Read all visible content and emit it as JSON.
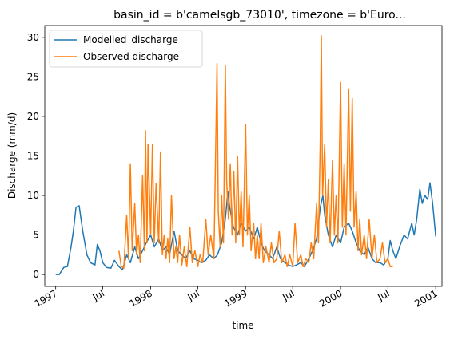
{
  "chart_data": {
    "type": "line",
    "title": "basin_id = b'camelsgb_73010', timezone = b'Euro...",
    "xlabel": "time",
    "ylabel": "Discharge (mm/d)",
    "ylim": [
      -1.5,
      31.5
    ],
    "xlim": [
      "1996-11-20",
      "2001-01-25"
    ],
    "yticks": [
      0,
      5,
      10,
      15,
      20,
      25,
      30
    ],
    "xticks": [
      {
        "date": "1997-01-01",
        "label": "1997"
      },
      {
        "date": "1997-07-01",
        "label": "Jul"
      },
      {
        "date": "1998-01-01",
        "label": "1998"
      },
      {
        "date": "1998-07-01",
        "label": "Jul"
      },
      {
        "date": "1999-01-01",
        "label": "1999"
      },
      {
        "date": "1999-07-01",
        "label": "Jul"
      },
      {
        "date": "2000-01-01",
        "label": "2000"
      },
      {
        "date": "2000-07-01",
        "label": "Jul"
      },
      {
        "date": "2001-01-01",
        "label": "2001"
      }
    ],
    "legend_position": "top-left",
    "grid": false,
    "series": [
      {
        "name": "Modelled_discharge",
        "color": "#1f77b4",
        "points": [
          [
            "1997-01-01",
            0.0
          ],
          [
            "1997-01-15",
            0.0
          ],
          [
            "1997-02-01",
            0.9
          ],
          [
            "1997-02-15",
            1.0
          ],
          [
            "1997-03-01",
            3.5
          ],
          [
            "1997-03-10",
            5.5
          ],
          [
            "1997-03-20",
            8.5
          ],
          [
            "1997-04-01",
            8.7
          ],
          [
            "1997-04-15",
            5.5
          ],
          [
            "1997-05-01",
            2.5
          ],
          [
            "1997-05-15",
            1.5
          ],
          [
            "1997-06-01",
            1.2
          ],
          [
            "1997-06-10",
            3.8
          ],
          [
            "1997-06-20",
            3.0
          ],
          [
            "1997-07-01",
            1.5
          ],
          [
            "1997-07-15",
            0.9
          ],
          [
            "1997-08-01",
            0.8
          ],
          [
            "1997-08-15",
            1.8
          ],
          [
            "1997-09-01",
            1.0
          ],
          [
            "1997-09-15",
            0.6
          ],
          [
            "1997-10-01",
            2.5
          ],
          [
            "1997-10-15",
            1.5
          ],
          [
            "1997-11-01",
            3.5
          ],
          [
            "1997-11-15",
            2.0
          ],
          [
            "1997-12-01",
            3.0
          ],
          [
            "1997-12-15",
            4.0
          ],
          [
            "1998-01-01",
            5.0
          ],
          [
            "1998-01-15",
            3.5
          ],
          [
            "1998-02-01",
            4.5
          ],
          [
            "1998-02-15",
            3.0
          ],
          [
            "1998-03-01",
            3.5
          ],
          [
            "1998-03-15",
            2.5
          ],
          [
            "1998-04-01",
            5.5
          ],
          [
            "1998-04-15",
            3.0
          ],
          [
            "1998-05-01",
            2.5
          ],
          [
            "1998-05-15",
            2.0
          ],
          [
            "1998-06-01",
            3.0
          ],
          [
            "1998-06-15",
            2.0
          ],
          [
            "1998-07-01",
            1.8
          ],
          [
            "1998-07-15",
            1.5
          ],
          [
            "1998-08-01",
            1.8
          ],
          [
            "1998-08-15",
            2.5
          ],
          [
            "1998-09-01",
            2.0
          ],
          [
            "1998-09-15",
            2.5
          ],
          [
            "1998-10-01",
            4.0
          ],
          [
            "1998-10-15",
            7.0
          ],
          [
            "1998-10-25",
            10.5
          ],
          [
            "1998-11-01",
            8.5
          ],
          [
            "1998-11-15",
            6.0
          ],
          [
            "1998-12-01",
            5.0
          ],
          [
            "1998-12-15",
            6.5
          ],
          [
            "1999-01-01",
            5.5
          ],
          [
            "1999-01-15",
            6.0
          ],
          [
            "1999-02-01",
            4.5
          ],
          [
            "1999-02-15",
            6.0
          ],
          [
            "1999-03-01",
            4.0
          ],
          [
            "1999-03-15",
            3.0
          ],
          [
            "1999-04-01",
            2.5
          ],
          [
            "1999-04-15",
            2.0
          ],
          [
            "1999-05-01",
            3.5
          ],
          [
            "1999-05-15",
            2.0
          ],
          [
            "1999-06-01",
            1.5
          ],
          [
            "1999-06-15",
            1.2
          ],
          [
            "1999-07-01",
            1.0
          ],
          [
            "1999-07-15",
            1.2
          ],
          [
            "1999-08-01",
            1.5
          ],
          [
            "1999-08-15",
            1.0
          ],
          [
            "1999-09-01",
            2.0
          ],
          [
            "1999-09-15",
            3.0
          ],
          [
            "1999-10-01",
            4.5
          ],
          [
            "1999-10-15",
            8.5
          ],
          [
            "1999-10-25",
            10.0
          ],
          [
            "1999-11-01",
            7.5
          ],
          [
            "1999-11-15",
            5.0
          ],
          [
            "1999-12-01",
            3.5
          ],
          [
            "1999-12-15",
            5.0
          ],
          [
            "2000-01-01",
            4.0
          ],
          [
            "2000-01-15",
            6.0
          ],
          [
            "2000-02-01",
            6.5
          ],
          [
            "2000-02-15",
            5.5
          ],
          [
            "2000-03-01",
            4.0
          ],
          [
            "2000-03-15",
            3.0
          ],
          [
            "2000-04-01",
            2.5
          ],
          [
            "2000-04-15",
            3.5
          ],
          [
            "2000-05-01",
            2.0
          ],
          [
            "2000-05-15",
            1.5
          ],
          [
            "2000-06-01",
            1.5
          ],
          [
            "2000-06-15",
            1.2
          ],
          [
            "2000-07-01",
            2.0
          ],
          [
            "2000-07-10",
            4.3
          ],
          [
            "2000-07-20",
            3.0
          ],
          [
            "2000-08-01",
            2.0
          ],
          [
            "2000-08-15",
            3.5
          ],
          [
            "2000-09-01",
            5.0
          ],
          [
            "2000-09-15",
            4.5
          ],
          [
            "2000-10-01",
            6.5
          ],
          [
            "2000-10-10",
            5.0
          ],
          [
            "2000-10-20",
            7.0
          ],
          [
            "2000-11-01",
            10.8
          ],
          [
            "2000-11-10",
            9.0
          ],
          [
            "2000-11-20",
            10.0
          ],
          [
            "2000-12-01",
            9.5
          ],
          [
            "2000-12-10",
            11.6
          ],
          [
            "2000-12-20",
            9.0
          ],
          [
            "2001-01-01",
            4.8
          ]
        ]
      },
      {
        "name": "Observed discharge",
        "color": "#ff7f0e",
        "points": [
          [
            "1997-09-01",
            3.0
          ],
          [
            "1997-09-10",
            1.0
          ],
          [
            "1997-09-20",
            0.8
          ],
          [
            "1997-10-01",
            7.5
          ],
          [
            "1997-10-08",
            2.0
          ],
          [
            "1997-10-15",
            14.0
          ],
          [
            "1997-10-22",
            3.0
          ],
          [
            "1997-11-01",
            9.0
          ],
          [
            "1997-11-08",
            2.5
          ],
          [
            "1997-11-15",
            5.0
          ],
          [
            "1997-11-22",
            1.5
          ],
          [
            "1997-12-01",
            12.5
          ],
          [
            "1997-12-08",
            3.0
          ],
          [
            "1997-12-12",
            18.2
          ],
          [
            "1997-12-18",
            4.0
          ],
          [
            "1997-12-22",
            16.5
          ],
          [
            "1998-01-01",
            5.0
          ],
          [
            "1998-01-08",
            16.5
          ],
          [
            "1998-01-15",
            4.0
          ],
          [
            "1998-01-22",
            11.5
          ],
          [
            "1998-02-01",
            4.0
          ],
          [
            "1998-02-08",
            15.5
          ],
          [
            "1998-02-15",
            2.5
          ],
          [
            "1998-02-22",
            5.0
          ],
          [
            "1998-03-01",
            2.0
          ],
          [
            "1998-03-08",
            4.5
          ],
          [
            "1998-03-15",
            1.5
          ],
          [
            "1998-03-22",
            10.0
          ],
          [
            "1998-04-01",
            2.0
          ],
          [
            "1998-04-08",
            3.5
          ],
          [
            "1998-04-15",
            1.5
          ],
          [
            "1998-04-22",
            5.0
          ],
          [
            "1998-05-01",
            1.2
          ],
          [
            "1998-05-10",
            3.5
          ],
          [
            "1998-05-20",
            1.0
          ],
          [
            "1998-06-01",
            6.0
          ],
          [
            "1998-06-10",
            1.5
          ],
          [
            "1998-06-20",
            3.0
          ],
          [
            "1998-07-01",
            1.0
          ],
          [
            "1998-07-10",
            2.5
          ],
          [
            "1998-07-20",
            1.5
          ],
          [
            "1998-08-01",
            7.0
          ],
          [
            "1998-08-10",
            2.5
          ],
          [
            "1998-08-20",
            5.0
          ],
          [
            "1998-09-01",
            2.0
          ],
          [
            "1998-09-10",
            20.0
          ],
          [
            "1998-09-13",
            26.7
          ],
          [
            "1998-09-18",
            8.0
          ],
          [
            "1998-09-25",
            3.5
          ],
          [
            "1998-10-01",
            10.0
          ],
          [
            "1998-10-08",
            4.0
          ],
          [
            "1998-10-15",
            26.5
          ],
          [
            "1998-10-20",
            12.0
          ],
          [
            "1998-10-27",
            7.0
          ],
          [
            "1998-11-03",
            14.0
          ],
          [
            "1998-11-10",
            5.0
          ],
          [
            "1998-11-17",
            13.0
          ],
          [
            "1998-11-24",
            4.0
          ],
          [
            "1998-12-01",
            15.0
          ],
          [
            "1998-12-08",
            5.0
          ],
          [
            "1998-12-15",
            10.5
          ],
          [
            "1998-12-22",
            3.5
          ],
          [
            "1999-01-01",
            19.0
          ],
          [
            "1999-01-08",
            5.0
          ],
          [
            "1999-01-15",
            10.0
          ],
          [
            "1999-01-22",
            3.0
          ],
          [
            "1999-02-01",
            6.5
          ],
          [
            "1999-02-08",
            2.0
          ],
          [
            "1999-02-15",
            5.0
          ],
          [
            "1999-02-22",
            2.0
          ],
          [
            "1999-03-01",
            6.5
          ],
          [
            "1999-03-10",
            1.5
          ],
          [
            "1999-03-20",
            3.5
          ],
          [
            "1999-04-01",
            1.5
          ],
          [
            "1999-04-10",
            4.0
          ],
          [
            "1999-04-20",
            1.5
          ],
          [
            "1999-05-01",
            2.0
          ],
          [
            "1999-05-10",
            5.5
          ],
          [
            "1999-05-20",
            1.5
          ],
          [
            "1999-06-01",
            2.5
          ],
          [
            "1999-06-10",
            1.0
          ],
          [
            "1999-06-20",
            2.5
          ],
          [
            "1999-07-01",
            1.0
          ],
          [
            "1999-07-10",
            6.5
          ],
          [
            "1999-07-20",
            1.5
          ],
          [
            "1999-08-01",
            2.5
          ],
          [
            "1999-08-10",
            1.0
          ],
          [
            "1999-08-20",
            2.0
          ],
          [
            "1999-09-01",
            1.5
          ],
          [
            "1999-09-10",
            4.0
          ],
          [
            "1999-09-20",
            2.0
          ],
          [
            "1999-10-01",
            9.0
          ],
          [
            "1999-10-08",
            4.0
          ],
          [
            "1999-10-15",
            17.0
          ],
          [
            "1999-10-19",
            30.2
          ],
          [
            "1999-10-24",
            10.0
          ],
          [
            "1999-11-01",
            16.5
          ],
          [
            "1999-11-08",
            6.0
          ],
          [
            "1999-11-15",
            12.0
          ],
          [
            "1999-11-22",
            4.0
          ],
          [
            "1999-12-01",
            14.5
          ],
          [
            "1999-12-08",
            5.0
          ],
          [
            "1999-12-15",
            10.0
          ],
          [
            "1999-12-22",
            4.0
          ],
          [
            "2000-01-01",
            24.3
          ],
          [
            "2000-01-08",
            6.0
          ],
          [
            "2000-01-15",
            14.0
          ],
          [
            "2000-01-22",
            5.0
          ],
          [
            "2000-02-01",
            23.5
          ],
          [
            "2000-02-08",
            8.0
          ],
          [
            "2000-02-15",
            22.3
          ],
          [
            "2000-02-22",
            6.0
          ],
          [
            "2000-03-01",
            10.5
          ],
          [
            "2000-03-08",
            3.0
          ],
          [
            "2000-03-15",
            7.0
          ],
          [
            "2000-03-22",
            2.5
          ],
          [
            "2000-04-01",
            5.0
          ],
          [
            "2000-04-10",
            2.0
          ],
          [
            "2000-04-20",
            7.0
          ],
          [
            "2000-05-01",
            2.0
          ],
          [
            "2000-05-10",
            5.0
          ],
          [
            "2000-05-20",
            1.5
          ],
          [
            "2000-06-01",
            2.0
          ],
          [
            "2000-06-10",
            4.0
          ],
          [
            "2000-06-20",
            1.5
          ],
          [
            "2000-07-01",
            2.0
          ],
          [
            "2000-07-10",
            1.0
          ],
          [
            "2000-07-20",
            1.0
          ]
        ]
      }
    ]
  }
}
